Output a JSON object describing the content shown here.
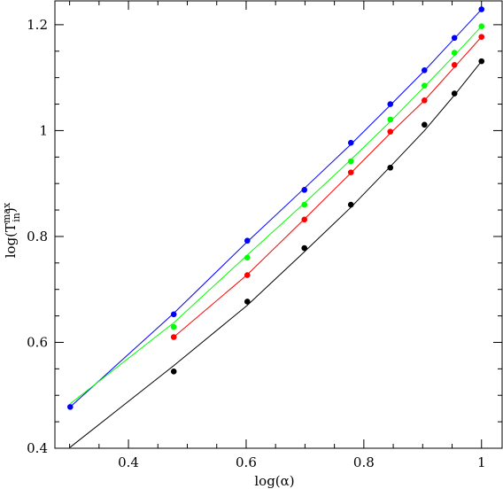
{
  "chart_data": {
    "type": "scatter",
    "xlabel": "log(α)",
    "ylabel": {
      "prefix": "log(T",
      "superscript": "max",
      "subscript": "in",
      "suffix": ")"
    },
    "xlim": [
      0.275,
      1.035
    ],
    "ylim": [
      0.4,
      1.245
    ],
    "xticks": [
      0.4,
      0.6,
      0.8,
      1.0
    ],
    "xtick_labels": [
      "0.4",
      "0.6",
      "0.8",
      "1"
    ],
    "yticks": [
      0.4,
      0.6,
      0.8,
      1.0,
      1.2
    ],
    "ytick_labels": [
      "0.4",
      "0.6",
      "0.8",
      "1",
      "1.2"
    ],
    "grid": false,
    "series": [
      {
        "color": "#0000ff",
        "points": [
          [
            0.301,
            0.478
          ],
          [
            0.477,
            0.653
          ],
          [
            0.602,
            0.792
          ],
          [
            0.699,
            0.888
          ],
          [
            0.778,
            0.977
          ],
          [
            0.845,
            1.05
          ],
          [
            0.903,
            1.114
          ],
          [
            0.954,
            1.175
          ],
          [
            1.0,
            1.229
          ]
        ],
        "curve": [
          [
            0.301,
            0.478
          ],
          [
            0.477,
            0.655
          ],
          [
            0.602,
            0.79
          ],
          [
            0.699,
            0.891
          ],
          [
            0.778,
            0.974
          ],
          [
            0.845,
            1.048
          ],
          [
            0.903,
            1.113
          ],
          [
            0.954,
            1.174
          ],
          [
            1.0,
            1.229
          ]
        ]
      },
      {
        "color": "#00ff00",
        "points": [
          [
            0.477,
            0.629
          ],
          [
            0.602,
            0.76
          ],
          [
            0.699,
            0.86
          ],
          [
            0.778,
            0.942
          ],
          [
            0.845,
            1.021
          ],
          [
            0.903,
            1.085
          ],
          [
            0.954,
            1.147
          ],
          [
            1.0,
            1.197
          ]
        ],
        "curve": [
          [
            0.301,
            0.484
          ],
          [
            0.477,
            0.637
          ],
          [
            0.602,
            0.765
          ],
          [
            0.699,
            0.863
          ],
          [
            0.778,
            0.945
          ],
          [
            0.845,
            1.017
          ],
          [
            0.903,
            1.083
          ],
          [
            0.954,
            1.142
          ],
          [
            1.0,
            1.197
          ]
        ]
      },
      {
        "color": "#ff0000",
        "points": [
          [
            0.477,
            0.61
          ],
          [
            0.602,
            0.727
          ],
          [
            0.699,
            0.832
          ],
          [
            0.778,
            0.921
          ],
          [
            0.845,
            0.998
          ],
          [
            0.903,
            1.057
          ],
          [
            0.954,
            1.124
          ],
          [
            1.0,
            1.177
          ]
        ],
        "curve": [
          [
            0.477,
            0.61
          ],
          [
            0.602,
            0.728
          ],
          [
            0.699,
            0.833
          ],
          [
            0.778,
            0.92
          ],
          [
            0.845,
            0.995
          ],
          [
            0.903,
            1.057
          ],
          [
            0.954,
            1.12
          ],
          [
            1.0,
            1.177
          ]
        ]
      },
      {
        "color": "#000000",
        "points": [
          [
            0.477,
            0.545
          ],
          [
            0.602,
            0.677
          ],
          [
            0.699,
            0.778
          ],
          [
            0.778,
            0.86
          ],
          [
            0.845,
            0.93
          ],
          [
            0.903,
            1.011
          ],
          [
            0.954,
            1.07
          ],
          [
            1.0,
            1.131
          ]
        ],
        "curve": [
          [
            0.301,
            0.402
          ],
          [
            0.477,
            0.556
          ],
          [
            0.602,
            0.67
          ],
          [
            0.699,
            0.771
          ],
          [
            0.778,
            0.855
          ],
          [
            0.845,
            0.932
          ],
          [
            0.903,
            1.0
          ],
          [
            0.954,
            1.067
          ],
          [
            1.0,
            1.131
          ]
        ]
      }
    ]
  }
}
